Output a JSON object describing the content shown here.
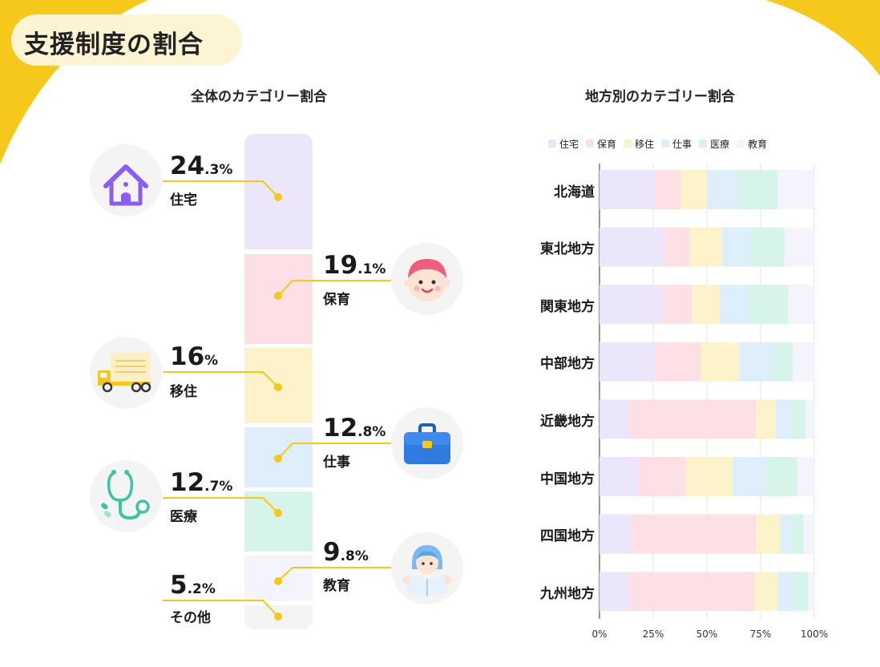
{
  "page": {
    "title": "支援制度の割合",
    "left_title": "全体のカテゴリー割合",
    "right_title": "地方別のカテゴリー割合"
  },
  "colors": {
    "accent": "#f6c81b",
    "住宅": "#ece6fb",
    "保育": "#fde0e6",
    "移住": "#fcf3cb",
    "仕事": "#dfeefb",
    "医療": "#d6f4ea",
    "教育": "#f3f4fc",
    "その他": "#f4f4f4"
  },
  "chart_data": [
    {
      "type": "bar",
      "title": "全体のカテゴリー割合",
      "categories": [
        "住宅",
        "保育",
        "移住",
        "仕事",
        "医療",
        "教育",
        "その他"
      ],
      "values": [
        24.3,
        19.1,
        16,
        12.8,
        12.7,
        9.8,
        5.2
      ],
      "value_labels": [
        {
          "num": "24",
          "dec": ".3%"
        },
        {
          "num": "19",
          "dec": ".1%"
        },
        {
          "num": "16",
          "dec": "%"
        },
        {
          "num": "12",
          "dec": ".8%"
        },
        {
          "num": "12",
          "dec": ".7%"
        },
        {
          "num": "9",
          "dec": ".8%"
        },
        {
          "num": "5",
          "dec": ".2%"
        }
      ],
      "icons": [
        "house-icon",
        "child-face-icon",
        "moving-truck-icon",
        "briefcase-icon",
        "stethoscope-icon",
        "student-reading-icon",
        ""
      ]
    },
    {
      "type": "bar",
      "orientation": "horizontal",
      "stacked": "percent",
      "title": "地方別のカテゴリー割合",
      "legend_position": "top",
      "categories": [
        "北海道",
        "東北地方",
        "関東地方",
        "中部地方",
        "近畿地方",
        "中国地方",
        "四国地方",
        "九州地方"
      ],
      "series": [
        {
          "name": "住宅",
          "values": [
            26,
            30,
            29,
            26,
            14,
            18,
            15,
            14
          ]
        },
        {
          "name": "保育",
          "values": [
            12,
            12,
            14,
            21,
            59,
            22,
            58,
            58
          ]
        },
        {
          "name": "移住",
          "values": [
            12,
            15,
            13,
            18,
            9,
            22,
            11,
            11
          ]
        },
        {
          "name": "仕事",
          "values": [
            15,
            13,
            13,
            15,
            7,
            15,
            5,
            7
          ]
        },
        {
          "name": "医療",
          "values": [
            18,
            16,
            19,
            10,
            7,
            15,
            6,
            7
          ]
        },
        {
          "name": "教育",
          "values": [
            17,
            14,
            12,
            10,
            4,
            8,
            5,
            3
          ]
        }
      ],
      "xlim": [
        0,
        100
      ],
      "xticks": [
        "0%",
        "25%",
        "50%",
        "75%",
        "100%"
      ],
      "grid": true
    }
  ]
}
